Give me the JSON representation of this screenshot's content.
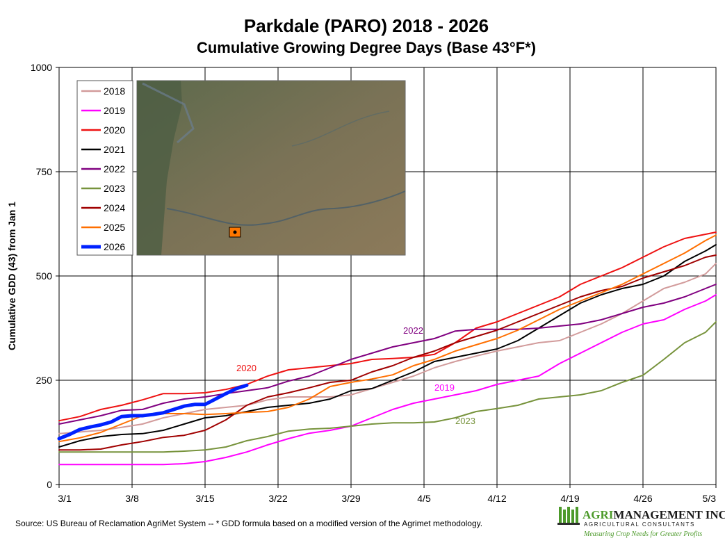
{
  "chart_data": {
    "type": "line",
    "title": "Parkdale (PARO) 2018 - 2026",
    "subtitle": "Cumulative Growing Degree Days (Base 43°F*)",
    "ylabel": "Cumulative GDD (43) from Jan 1",
    "xlabel": "",
    "xlim": [
      0,
      63
    ],
    "ylim": [
      0,
      1000
    ],
    "yticks": [
      0,
      250,
      500,
      750,
      1000
    ],
    "ytick_labels": [
      "0",
      "250",
      "500",
      "750",
      "1000"
    ],
    "xticks": [
      0,
      7,
      14,
      21,
      28,
      35,
      42,
      49,
      56,
      63
    ],
    "xtick_labels": [
      "3/1",
      "3/8",
      "3/15",
      "3/22",
      "3/29",
      "4/5",
      "4/12",
      "4/19",
      "4/26",
      "5/3"
    ],
    "grid": true,
    "legend_position": "top-left",
    "series": [
      {
        "name": "2018",
        "color": "#d29b9b",
        "width": 2,
        "x": [
          0,
          2,
          4,
          6,
          8,
          10,
          12,
          14,
          16,
          18,
          20,
          22,
          24,
          26,
          28,
          30,
          32,
          34,
          36,
          38,
          40,
          42,
          44,
          46,
          48,
          50,
          52,
          54,
          56,
          58,
          60,
          62,
          63
        ],
        "values": [
          122,
          126,
          130,
          137,
          145,
          160,
          170,
          180,
          185,
          190,
          203,
          210,
          210,
          210,
          215,
          230,
          245,
          260,
          280,
          295,
          308,
          320,
          330,
          340,
          345,
          365,
          385,
          410,
          440,
          470,
          485,
          505,
          530
        ]
      },
      {
        "name": "2019",
        "color": "#ff00ff",
        "width": 2,
        "x": [
          0,
          2,
          4,
          6,
          8,
          10,
          12,
          14,
          16,
          18,
          20,
          22,
          24,
          26,
          28,
          30,
          32,
          34,
          36,
          38,
          40,
          42,
          44,
          46,
          48,
          50,
          52,
          54,
          56,
          58,
          60,
          62,
          63
        ],
        "values": [
          48,
          48,
          48,
          48,
          48,
          48,
          50,
          55,
          65,
          78,
          95,
          110,
          123,
          130,
          140,
          160,
          180,
          195,
          205,
          215,
          225,
          240,
          250,
          260,
          290,
          315,
          340,
          365,
          385,
          395,
          420,
          440,
          455
        ]
      },
      {
        "name": "2020",
        "color": "#ee1111",
        "width": 2,
        "x": [
          0,
          2,
          4,
          6,
          8,
          10,
          12,
          14,
          16,
          18,
          20,
          22,
          24,
          26,
          28,
          30,
          32,
          34,
          36,
          38,
          40,
          42,
          44,
          46,
          48,
          50,
          52,
          54,
          56,
          58,
          60,
          62,
          63
        ],
        "values": [
          153,
          163,
          180,
          190,
          203,
          218,
          218,
          220,
          228,
          240,
          260,
          275,
          280,
          285,
          290,
          300,
          302,
          305,
          312,
          340,
          375,
          390,
          410,
          430,
          450,
          480,
          500,
          520,
          545,
          570,
          590,
          600,
          605
        ]
      },
      {
        "name": "2021",
        "color": "#000000",
        "width": 2,
        "x": [
          0,
          2,
          4,
          6,
          8,
          10,
          12,
          14,
          16,
          18,
          20,
          22,
          24,
          26,
          28,
          30,
          32,
          34,
          36,
          38,
          40,
          42,
          44,
          46,
          48,
          50,
          52,
          54,
          56,
          58,
          60,
          62,
          63
        ],
        "values": [
          90,
          105,
          115,
          120,
          122,
          130,
          145,
          160,
          165,
          175,
          185,
          190,
          195,
          205,
          225,
          230,
          250,
          270,
          295,
          305,
          315,
          325,
          345,
          375,
          405,
          435,
          455,
          470,
          480,
          500,
          535,
          560,
          575
        ]
      },
      {
        "name": "2022",
        "color": "#800080",
        "width": 2,
        "x": [
          0,
          2,
          4,
          6,
          8,
          10,
          12,
          14,
          16,
          18,
          20,
          22,
          24,
          26,
          28,
          30,
          32,
          34,
          36,
          38,
          40,
          42,
          44,
          46,
          48,
          50,
          52,
          54,
          56,
          58,
          60,
          62,
          63
        ],
        "values": [
          145,
          155,
          165,
          178,
          180,
          195,
          205,
          210,
          218,
          225,
          232,
          248,
          260,
          280,
          300,
          315,
          330,
          340,
          350,
          368,
          372,
          372,
          372,
          375,
          380,
          385,
          395,
          410,
          425,
          435,
          450,
          470,
          480
        ]
      },
      {
        "name": "2023",
        "color": "#77933c",
        "width": 2,
        "x": [
          0,
          2,
          4,
          6,
          8,
          10,
          12,
          14,
          16,
          18,
          20,
          22,
          24,
          26,
          28,
          30,
          32,
          34,
          36,
          38,
          40,
          42,
          44,
          46,
          48,
          50,
          52,
          54,
          56,
          58,
          60,
          62,
          63
        ],
        "values": [
          78,
          78,
          78,
          78,
          78,
          78,
          80,
          83,
          90,
          105,
          115,
          128,
          133,
          135,
          140,
          145,
          148,
          148,
          150,
          160,
          175,
          182,
          190,
          205,
          210,
          215,
          225,
          245,
          262,
          300,
          340,
          365,
          390
        ]
      },
      {
        "name": "2024",
        "color": "#a00000",
        "width": 2,
        "x": [
          0,
          2,
          4,
          6,
          8,
          10,
          12,
          14,
          16,
          18,
          20,
          22,
          24,
          26,
          28,
          30,
          32,
          34,
          36,
          38,
          40,
          42,
          44,
          46,
          48,
          50,
          52,
          54,
          56,
          58,
          60,
          62,
          63
        ],
        "values": [
          83,
          83,
          85,
          95,
          103,
          113,
          118,
          130,
          155,
          190,
          210,
          220,
          232,
          245,
          250,
          270,
          285,
          305,
          320,
          340,
          355,
          370,
          390,
          410,
          430,
          450,
          465,
          475,
          495,
          510,
          525,
          545,
          550
        ]
      },
      {
        "name": "2025",
        "color": "#ff6f00",
        "width": 2,
        "x": [
          0,
          2,
          4,
          6,
          8,
          10,
          12,
          14,
          16,
          18,
          20,
          22,
          24,
          26,
          28,
          30,
          32,
          34,
          36,
          38,
          40,
          42,
          44,
          46,
          48,
          50,
          52,
          54,
          56,
          58,
          60,
          62,
          63
        ],
        "values": [
          103,
          112,
          125,
          145,
          165,
          170,
          170,
          168,
          170,
          173,
          175,
          185,
          205,
          235,
          245,
          253,
          263,
          285,
          300,
          320,
          335,
          350,
          370,
          395,
          420,
          440,
          460,
          480,
          505,
          530,
          555,
          585,
          598
        ]
      },
      {
        "name": "2026",
        "color": "#0022ff",
        "width": 5,
        "x": [
          0,
          1,
          2,
          3,
          4,
          5,
          6,
          7,
          8,
          9,
          10,
          11,
          12,
          13,
          14,
          15,
          16,
          17,
          18
        ],
        "values": [
          110,
          120,
          132,
          138,
          143,
          150,
          163,
          165,
          165,
          168,
          172,
          180,
          188,
          192,
          192,
          205,
          218,
          230,
          238
        ]
      }
    ],
    "annotations": [
      {
        "text": "2020",
        "x": 17,
        "y": 272,
        "color": "#ee1111"
      },
      {
        "text": "2022",
        "x": 33,
        "y": 362,
        "color": "#800080"
      },
      {
        "text": "2019",
        "x": 36,
        "y": 225,
        "color": "#ff00ff"
      },
      {
        "text": "2023",
        "x": 38,
        "y": 145,
        "color": "#77933c"
      }
    ],
    "source": "Source:  US Bureau of Reclamation AgriMet System --  * GDD formula based on a modified version of the Agrimet methodology."
  },
  "brand": {
    "name_bold": "AGRI",
    "name_rest": "MANAGEMENT INC.",
    "registered": "®",
    "tagline": "AGRICULTURAL CONSULTANTS",
    "slogan": "Measuring Crop Needs for Greater Profits",
    "color_green": "#4c9a2a",
    "color_dark": "#1a1a1a"
  },
  "map_inset": {
    "marker_color": "#ff7700"
  }
}
